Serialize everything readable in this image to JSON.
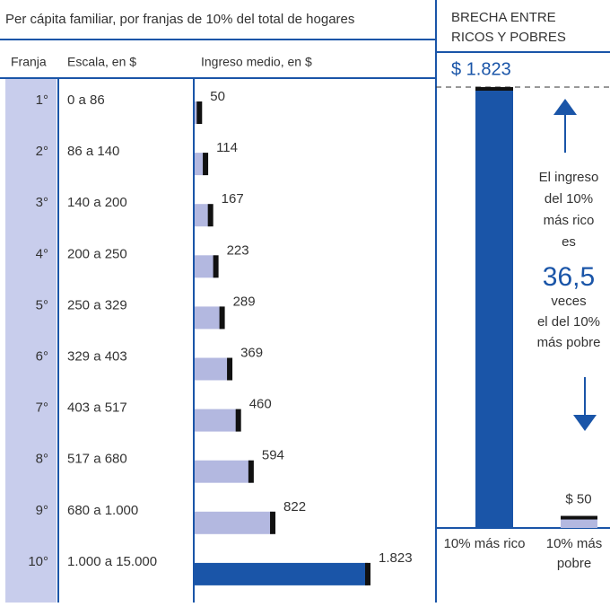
{
  "title": "Per cápita familiar, por franjas de 10% del total de hogares",
  "columns": [
    "Franja",
    "Escala, en $",
    "Ingreso medio, en $"
  ],
  "franjas": [
    "1°",
    "2°",
    "3°",
    "4°",
    "5°",
    "6°",
    "7°",
    "8°",
    "9°",
    "10°"
  ],
  "escalas": [
    "0 a 86",
    "86 a 140",
    "140 a 200",
    "200 a 250",
    "250 a 329",
    "329 a 403",
    "403 a 517",
    "517 a 680",
    "680 a 1.000",
    "1.000 a 15.000"
  ],
  "values": [
    50,
    114,
    167,
    223,
    289,
    369,
    460,
    594,
    822,
    1823
  ],
  "value_labels": [
    "50",
    "114",
    "167",
    "223",
    "289",
    "369",
    "460",
    "594",
    "822",
    "1.823"
  ],
  "gap": {
    "title": [
      "BRECHA ENTRE",
      "RICOS Y POBRES"
    ],
    "top_label": "$ 1.823",
    "top_value": 1823,
    "bottom_label": "$ 50",
    "bottom_value": 50,
    "text_before": [
      "El ingreso",
      "del 10%",
      "más rico",
      "es"
    ],
    "ratio": "36,5",
    "text_after": [
      "veces",
      "el del 10%",
      "más pobre"
    ],
    "rich_label": "10% más rico",
    "poor_label": [
      "10% más",
      "pobre"
    ]
  }
}
